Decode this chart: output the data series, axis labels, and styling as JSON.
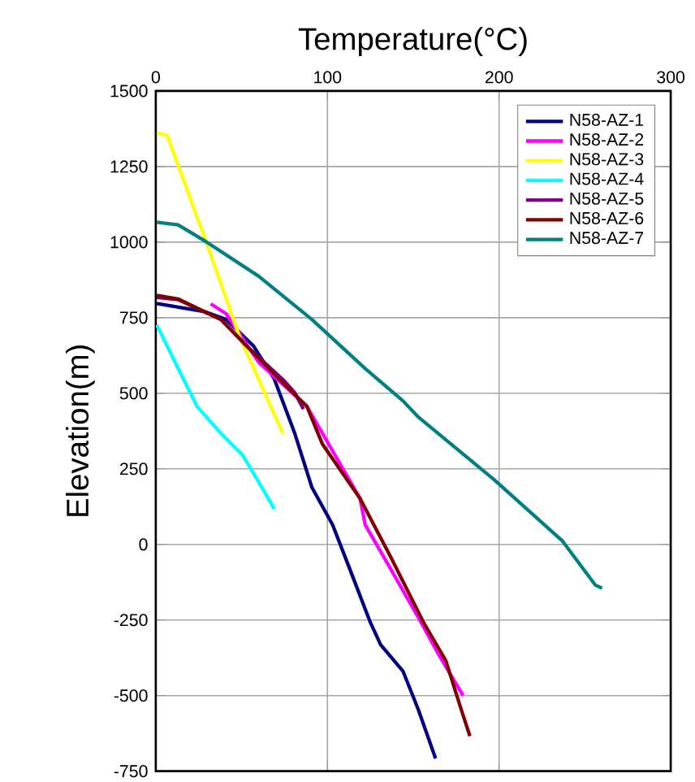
{
  "chart_data": {
    "type": "line",
    "xlabel": "Temperature(°C)",
    "ylabel": "Elevation(m)",
    "xlim": [
      0,
      300
    ],
    "xticks": [
      0,
      100,
      200,
      300
    ],
    "ylim": [
      -750,
      1500
    ],
    "yticks": [
      -750,
      -500,
      -250,
      0,
      250,
      500,
      750,
      1000,
      1250,
      1500
    ],
    "grid": true,
    "legend": "top right",
    "marker": "none",
    "line_style": "solid",
    "series": [
      {
        "name": "N58-AZ-1",
        "color": "#000080",
        "x": [
          0.6,
          28.6,
          41,
          57,
          69,
          81,
          91,
          103,
          113,
          125,
          131,
          144,
          153,
          163
        ],
        "values": [
          797,
          770,
          744,
          656,
          548,
          367,
          188,
          65,
          -81,
          -258,
          -332,
          -419,
          -547,
          -708
        ]
      },
      {
        "name": "N58-AZ-2",
        "color": "#ff00ff",
        "x": [
          32,
          41,
          60,
          88,
          119,
          122,
          135,
          153,
          165,
          179
        ],
        "values": [
          796,
          763,
          602,
          457,
          152,
          65,
          -63,
          -242,
          -366,
          -500
        ]
      },
      {
        "name": "N58-AZ-3",
        "color": "#ffff00",
        "x": [
          0.6,
          6.5,
          28.6,
          48.6,
          74
        ],
        "values": [
          1362,
          1354,
          1012,
          690,
          367
        ]
      },
      {
        "name": "N58-AZ-4",
        "color": "#00ffff",
        "x": [
          0.6,
          13,
          24,
          38,
          50.5,
          60,
          69
        ],
        "values": [
          726,
          582,
          457,
          367,
          296,
          206,
          118
        ]
      },
      {
        "name": "N58-AZ-5",
        "color": "#800080",
        "x": [
          0.6,
          13,
          38,
          53,
          75,
          81,
          86
        ],
        "values": [
          817,
          810,
          744,
          656,
          540,
          502,
          448
        ]
      },
      {
        "name": "N58-AZ-6",
        "color": "#800000",
        "x": [
          0.6,
          13,
          38,
          53,
          75,
          88,
          97,
          119,
          137,
          156,
          169,
          178,
          183
        ],
        "values": [
          824,
          812,
          744,
          656,
          529,
          457,
          333,
          152,
          -43,
          -258,
          -385,
          -547,
          -634
        ]
      },
      {
        "name": "N58-AZ-7",
        "color": "#008080",
        "x": [
          0.6,
          13,
          28.6,
          60,
          91,
          122,
          144,
          153,
          197,
          237,
          256,
          260
        ],
        "values": [
          1066,
          1057,
          1004,
          887,
          744,
          582,
          475,
          421,
          215,
          11,
          -134,
          -145
        ]
      }
    ]
  }
}
